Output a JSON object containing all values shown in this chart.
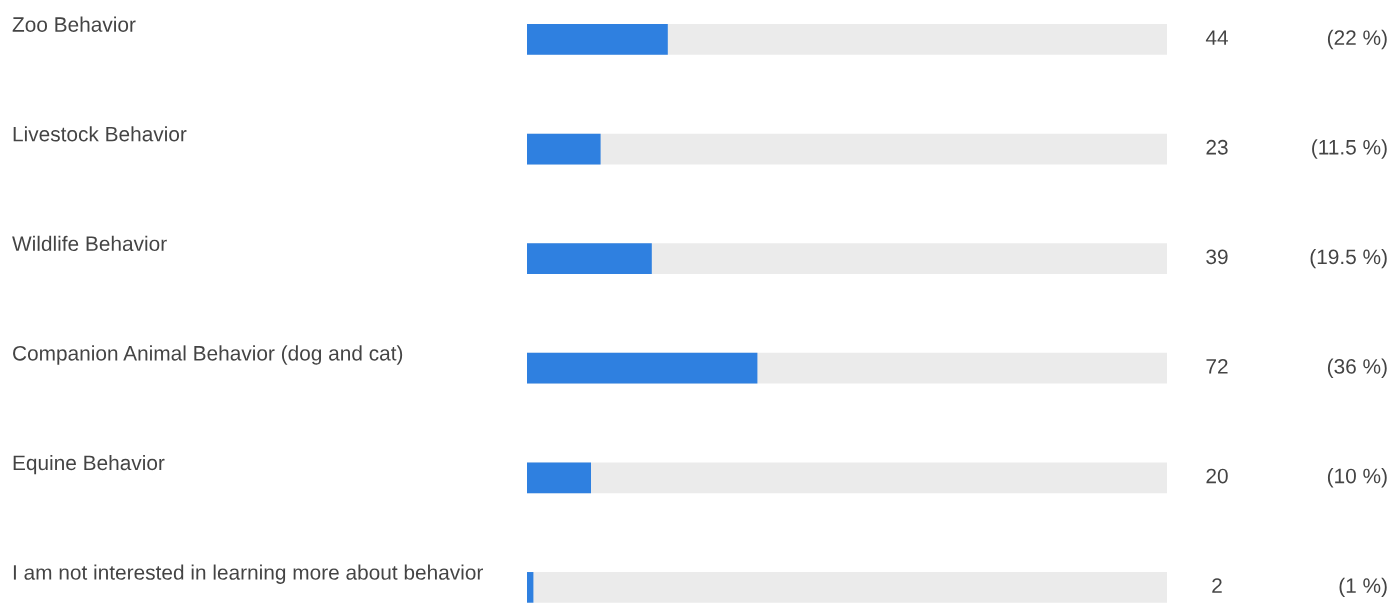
{
  "chart_data": {
    "type": "bar",
    "orientation": "horizontal",
    "categories": [
      "Zoo Behavior",
      "Livestock Behavior",
      "Wildlife Behavior",
      "Companion Animal Behavior (dog and cat)",
      "Equine Behavior",
      "I am not interested in learning more about behavior"
    ],
    "values": [
      44,
      23,
      39,
      72,
      20,
      2
    ],
    "value_labels": [
      "44",
      "23",
      "39",
      "72",
      "20",
      "2"
    ],
    "color": "#2f80e0",
    "xlim": [
      0,
      200
    ],
    "annotations": [
      "(22 %)",
      "(11.5 %)",
      "(19.5 %)",
      "(36 %)",
      "(10 %)",
      "(1 %)"
    ]
  }
}
